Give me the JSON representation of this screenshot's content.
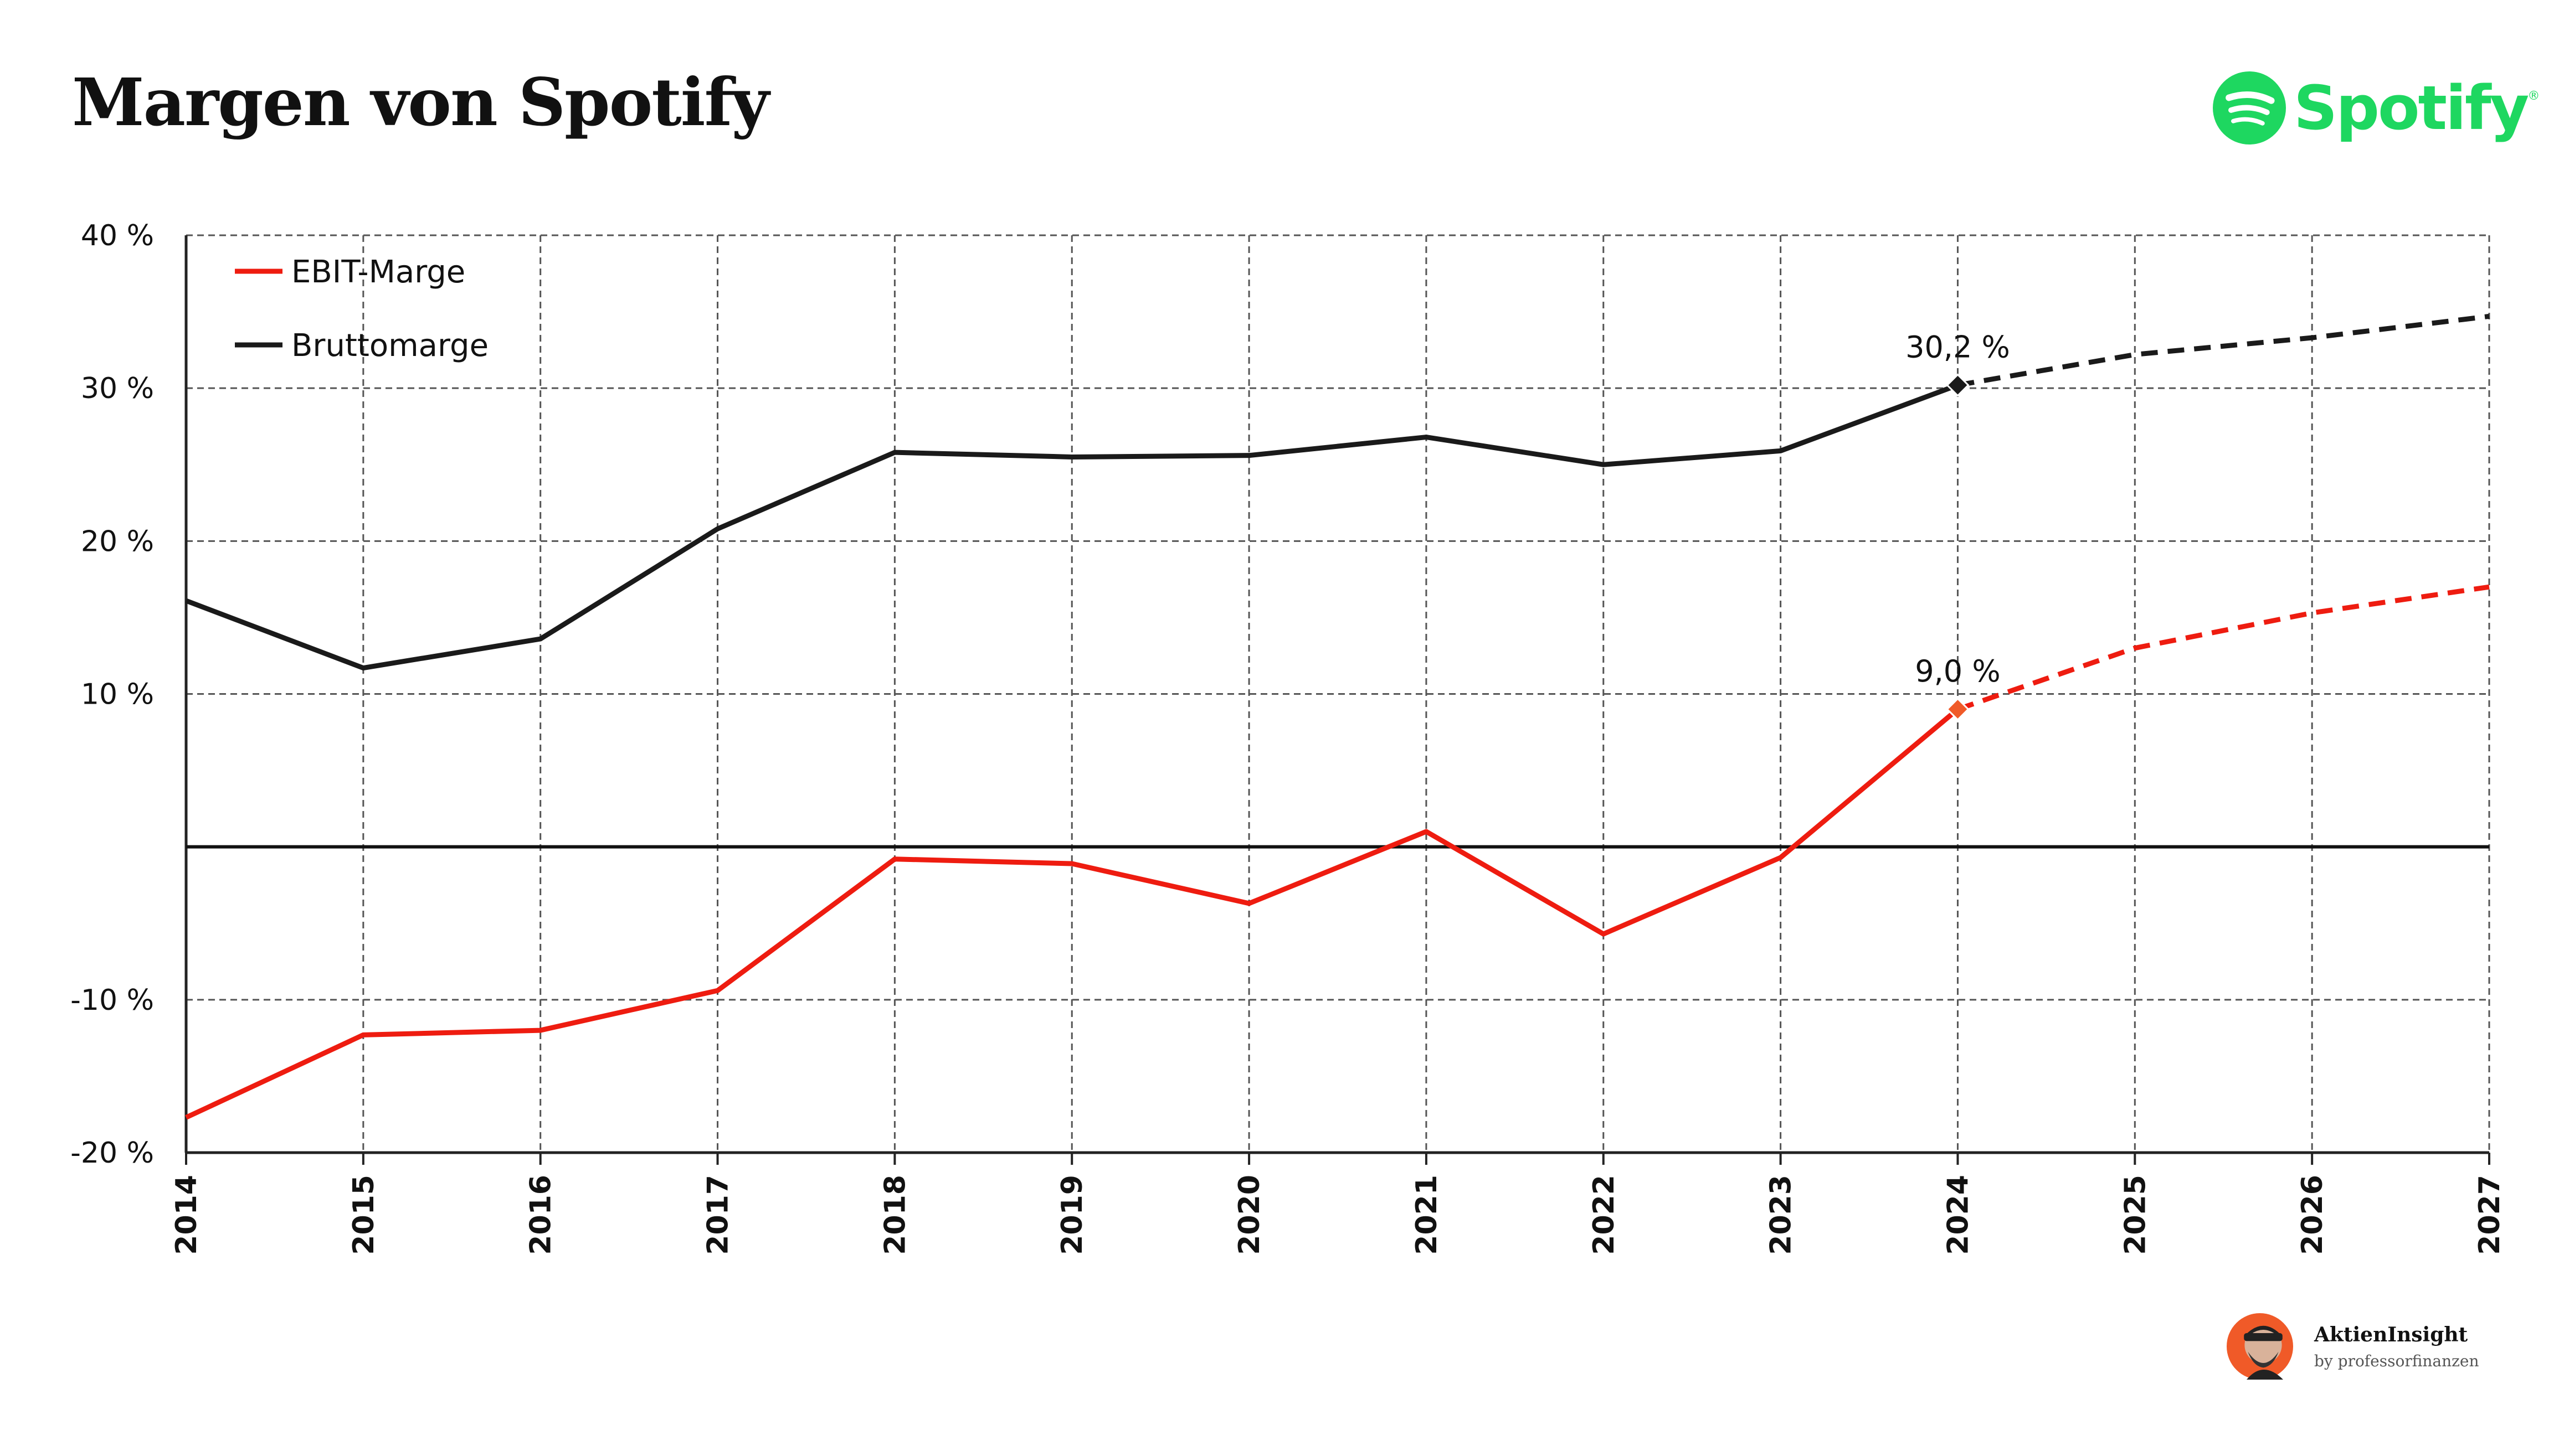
{
  "title": "Margen von Spotify",
  "brand": {
    "name": "Spotify",
    "icon": "spotify-logo-icon",
    "color": "#1ed760",
    "registered": "®"
  },
  "footer": {
    "title": "AktienInsight",
    "subtitle": "by professorfinanzen",
    "avatar_icon": "avatar-icon"
  },
  "chart_data": {
    "type": "line",
    "categories": [
      "2014",
      "2015",
      "2016",
      "2017",
      "2018",
      "2019",
      "2020",
      "2021",
      "2022",
      "2023",
      "2024",
      "2025",
      "2026",
      "2027"
    ],
    "ylim": [
      -20,
      40
    ],
    "yticks": [
      -20,
      -10,
      0,
      10,
      20,
      30,
      40
    ],
    "ytick_labels": [
      "-20 %",
      "-10 %",
      "",
      "10 %",
      "20 %",
      "30 %",
      "40 %"
    ],
    "grid": true,
    "grid_style": "dashed",
    "legend_position": "top-left",
    "forecast_from": "2024",
    "series": [
      {
        "name": "EBIT-Marge",
        "color": "#ee1c10",
        "values": [
          -17.7,
          -12.3,
          -12.0,
          -9.4,
          -0.8,
          -1.1,
          -3.7,
          1.0,
          -5.7,
          -0.7,
          9.0,
          13.0,
          15.3,
          17.0
        ]
      },
      {
        "name": "Bruttomarge",
        "color": "#1a1a1a",
        "values": [
          16.1,
          11.7,
          13.6,
          20.8,
          25.8,
          25.5,
          25.6,
          26.8,
          25.0,
          25.9,
          30.2,
          32.2,
          33.3,
          34.7
        ]
      }
    ],
    "annotations": [
      {
        "series": "Bruttomarge",
        "x": "2024",
        "text": "30,2 %",
        "marker_color": "#1a1a1a"
      },
      {
        "series": "EBIT-Marge",
        "x": "2024",
        "text": "9,0 %",
        "marker_color": "#f05a28"
      }
    ]
  }
}
